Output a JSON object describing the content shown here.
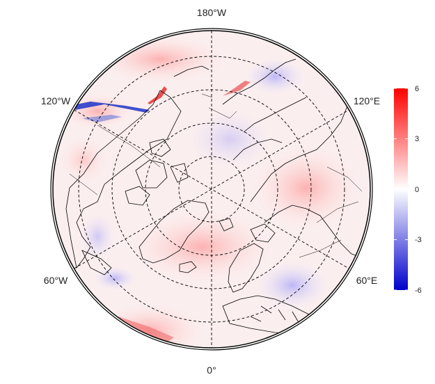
{
  "map": {
    "projection": "north-polar-stereographic",
    "longitude_labels": [
      "180°W",
      "120°W",
      "120°E",
      "60°W",
      "60°E",
      "0°"
    ]
  },
  "colorbar": {
    "min": -6,
    "max": 6,
    "ticks": [
      "6",
      "3",
      "0",
      "-3",
      "-6"
    ],
    "colors": {
      "high": "#ff0000",
      "mid": "#ffffff",
      "low": "#0000cc"
    }
  },
  "colors": {
    "coastline": "#000000",
    "grid": "#000000",
    "background": "#ffffff"
  }
}
